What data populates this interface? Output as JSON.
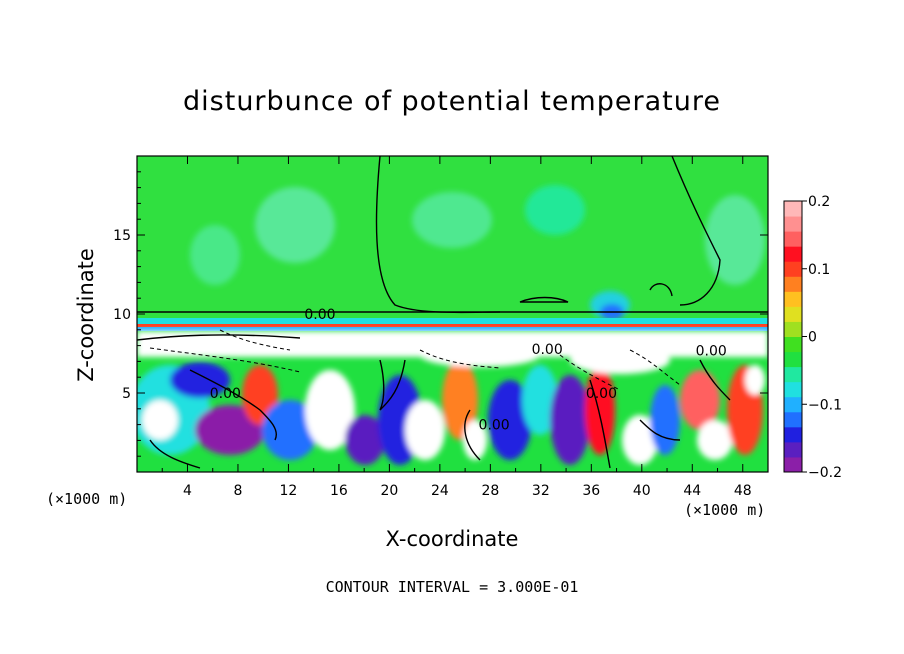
{
  "chart_data": {
    "type": "heatmap",
    "title": "disturbunce of potential temperature",
    "xlabel": "X-coordinate",
    "ylabel": "Z-coordinate",
    "x_unit_left": "(×1000 m)",
    "x_unit_right": "(×1000 m)",
    "xlim": [
      0,
      50
    ],
    "ylim": [
      0,
      20
    ],
    "xticks": [
      4,
      8,
      12,
      16,
      20,
      24,
      28,
      32,
      36,
      40,
      44,
      48
    ],
    "yticks": [
      5,
      10,
      15
    ],
    "colorbar": {
      "range": [
        -0.2,
        0.2
      ],
      "ticks": [
        {
          "value": 0.2,
          "label": "0.2"
        },
        {
          "value": 0.1,
          "label": "0.1"
        },
        {
          "value": 0,
          "label": "0"
        },
        {
          "value": -0.1,
          "label": "−0.1"
        },
        {
          "value": -0.2,
          "label": "−0.2"
        }
      ],
      "colors": [
        "#8b1fa8",
        "#5a1fc0",
        "#2020e0",
        "#2070ff",
        "#20b0ff",
        "#20e0e0",
        "#20e8a0",
        "#20e040",
        "#40e020",
        "#a0e020",
        "#e0e020",
        "#ffc020",
        "#ff8020",
        "#ff4020",
        "#ff1020",
        "#ff6060",
        "#ff9090",
        "#ffb8b8"
      ]
    },
    "contour_labels": [
      {
        "x": 14.5,
        "y": 10.0,
        "text": "0.00"
      },
      {
        "x": 32.5,
        "y": 7.8,
        "text": "0.00"
      },
      {
        "x": 45.5,
        "y": 7.7,
        "text": "0.00"
      },
      {
        "x": 7.0,
        "y": 5.0,
        "text": "0.00"
      },
      {
        "x": 28.3,
        "y": 3.0,
        "text": "0.00"
      },
      {
        "x": 36.8,
        "y": 5.0,
        "text": "0.00"
      }
    ],
    "contour_interval_note": "CONTOUR INTERVAL = 3.000E-01"
  }
}
